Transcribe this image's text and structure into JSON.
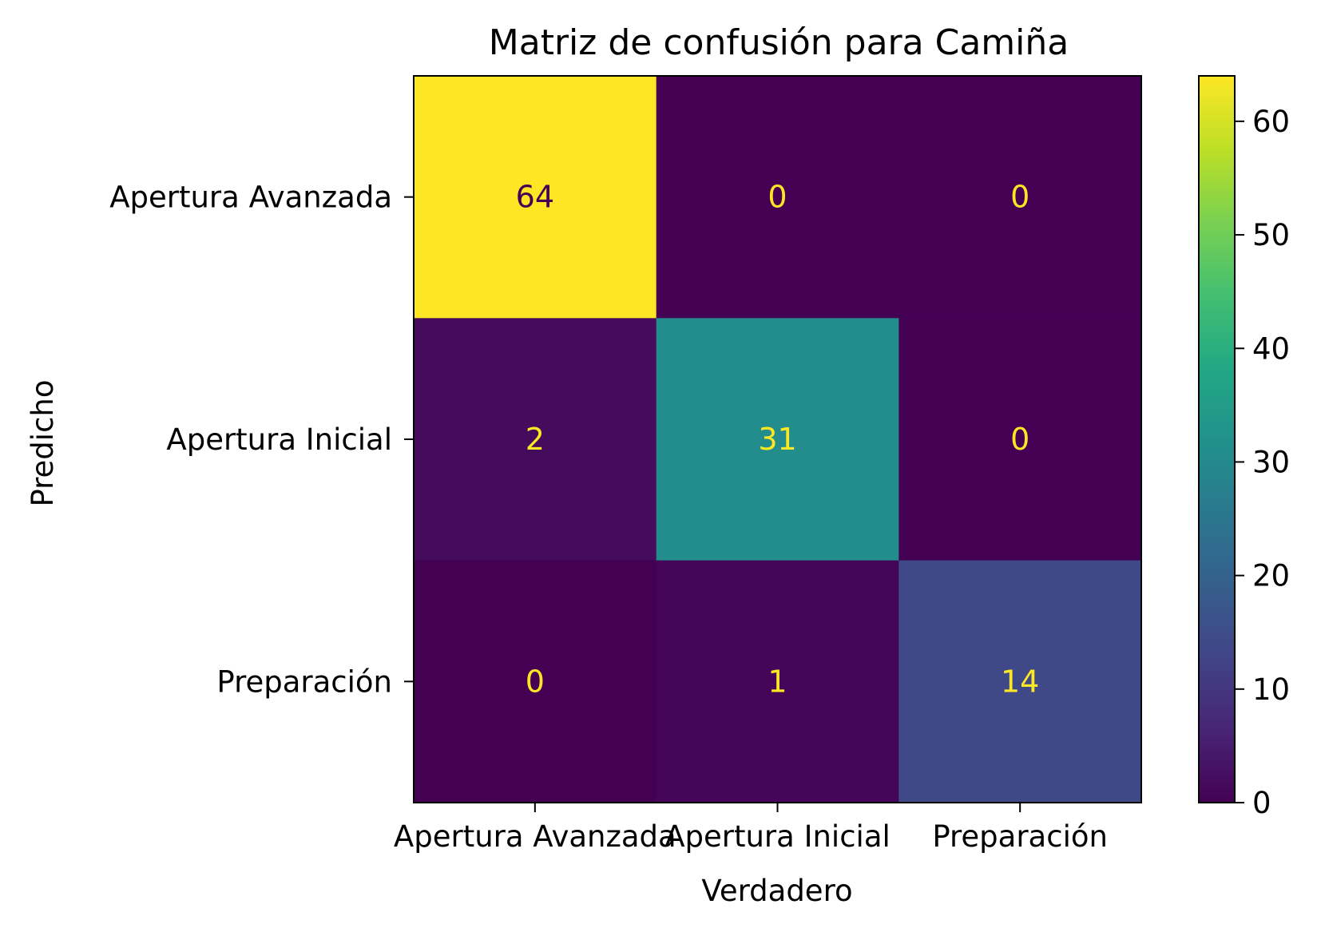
{
  "chart_data": {
    "type": "heatmap",
    "title": "Matriz de confusión para Camiña",
    "xlabel": "Verdadero",
    "ylabel": "Predicho",
    "x_categories": [
      "Apertura Avanzada",
      "Apertura Inicial",
      "Preparación"
    ],
    "y_categories": [
      "Apertura Avanzada",
      "Apertura Inicial",
      "Preparación"
    ],
    "values": [
      [
        64,
        0,
        0
      ],
      [
        2,
        31,
        0
      ],
      [
        0,
        1,
        14
      ]
    ],
    "colormap": "viridis",
    "colorbar": {
      "range": [
        0,
        64
      ],
      "ticks": [
        0,
        10,
        20,
        30,
        40,
        50,
        60
      ]
    },
    "text_colors": {
      "on_dark": "#fde725",
      "on_light": "#440154"
    }
  }
}
